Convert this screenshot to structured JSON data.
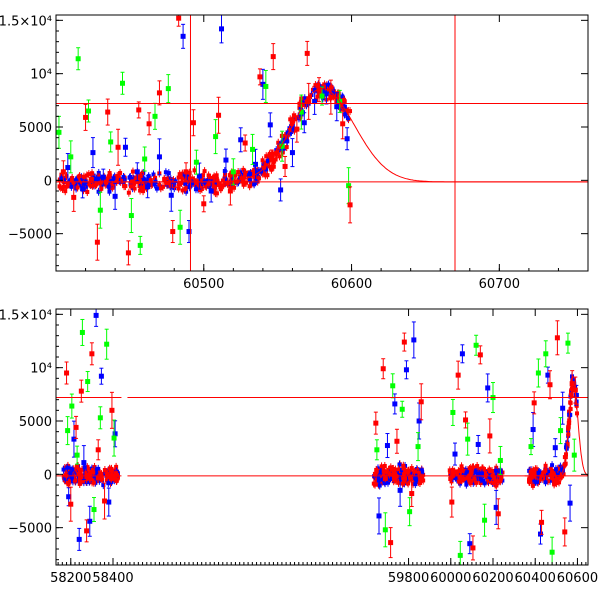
{
  "chart_data": [
    {
      "type": "scatter",
      "panel": "top",
      "title": "",
      "xlabel": "",
      "ylabel": "",
      "xlim": [
        60400,
        60760
      ],
      "ylim": [
        -8500,
        15500
      ],
      "xticks": [
        {
          "value": 60500,
          "label": "60500"
        },
        {
          "value": 60600,
          "label": "60600"
        },
        {
          "value": 60700,
          "label": "60700"
        }
      ],
      "yticks": [
        {
          "value": 15000,
          "label": "1.5×10⁴"
        },
        {
          "value": 10000,
          "label": "10⁴"
        },
        {
          "value": 5000,
          "label": "5000"
        },
        {
          "value": 0,
          "label": "0"
        },
        {
          "value": -5000,
          "label": "−5000"
        }
      ],
      "hlines": [
        7200,
        -150
      ],
      "vlines": [
        60491,
        60670
      ],
      "model_curve": {
        "peak_x": 60580,
        "peak_y": 8600,
        "rise_width": 20,
        "decay_width": 22,
        "baseline": -150,
        "x_range": [
          60400,
          60760
        ]
      },
      "series": [
        {
          "color": "#0000ff",
          "points": [
            [
              60408,
              1200
            ],
            [
              60418,
              -800
            ],
            [
              60425,
              2600
            ],
            [
              60432,
              300
            ],
            [
              60440,
              -1500
            ],
            [
              60447,
              3100
            ],
            [
              60455,
              800
            ],
            [
              60462,
              -600
            ],
            [
              60470,
              2200
            ],
            [
              60478,
              -1400
            ],
            [
              60486,
              13500
            ],
            [
              60490,
              -4800
            ],
            [
              60497,
              400
            ],
            [
              60505,
              -1000
            ],
            [
              60515,
              1900
            ],
            [
              60525,
              3800
            ],
            [
              60535,
              1500
            ],
            [
              60545,
              5200
            ],
            [
              60552,
              -900
            ],
            [
              60560,
              2600
            ],
            [
              60568,
              5400
            ],
            [
              60575,
              7400
            ],
            [
              60583,
              8100
            ],
            [
              60590,
              6900
            ],
            [
              60597,
              3900
            ],
            [
              60512,
              14200
            ],
            [
              60540,
              9000
            ]
          ]
        },
        {
          "color": "#00ff00",
          "points": [
            [
              60402,
              4500
            ],
            [
              60410,
              2200
            ],
            [
              60415,
              11400
            ],
            [
              60422,
              6500
            ],
            [
              60430,
              -2800
            ],
            [
              60437,
              3600
            ],
            [
              60445,
              9100
            ],
            [
              60451,
              -3300
            ],
            [
              60460,
              2000
            ],
            [
              60467,
              6000
            ],
            [
              60476,
              8600
            ],
            [
              60484,
              -4400
            ],
            [
              60495,
              1700
            ],
            [
              60508,
              4100
            ],
            [
              60520,
              800
            ],
            [
              60533,
              2900
            ],
            [
              60542,
              8800
            ],
            [
              60553,
              3200
            ],
            [
              60566,
              6400
            ],
            [
              60580,
              7900
            ],
            [
              60592,
              7400
            ],
            [
              60598,
              -500
            ],
            [
              60457,
              -6100
            ]
          ]
        },
        {
          "color": "#ff0000",
          "points": [
            [
              60405,
              800
            ],
            [
              60412,
              -1600
            ],
            [
              60420,
              5900
            ],
            [
              60428,
              -5800
            ],
            [
              60435,
              6400
            ],
            [
              60442,
              3100
            ],
            [
              60449,
              -6800
            ],
            [
              60456,
              6600
            ],
            [
              60463,
              5300
            ],
            [
              60470,
              8200
            ],
            [
              60479,
              -4800
            ],
            [
              60483,
              15200
            ],
            [
              60488,
              800
            ],
            [
              60493,
              5400
            ],
            [
              60500,
              -2200
            ],
            [
              60510,
              6100
            ],
            [
              60518,
              -1000
            ],
            [
              60528,
              3500
            ],
            [
              60538,
              9700
            ],
            [
              60546,
              2000
            ],
            [
              60555,
              1300
            ],
            [
              60563,
              4800
            ],
            [
              60571,
              7400
            ],
            [
              60578,
              8500
            ],
            [
              60586,
              7800
            ],
            [
              60594,
              5300
            ],
            [
              60599,
              -2300
            ],
            [
              60547,
              11600
            ],
            [
              60570,
              11900
            ]
          ]
        }
      ]
    },
    {
      "type": "scatter",
      "panel": "bottom",
      "title": "",
      "xlabel": "",
      "ylabel": "",
      "xlim": [
        58130,
        60650
      ],
      "ylim": [
        -8500,
        15500
      ],
      "xticks": [
        {
          "value": 58200,
          "label": "58200"
        },
        {
          "value": 58400,
          "label": "58400"
        },
        {
          "value": 59800,
          "label": "59800"
        },
        {
          "value": 60000,
          "label": "60000"
        },
        {
          "value": 60200,
          "label": "60200"
        },
        {
          "value": 60400,
          "label": "60400"
        },
        {
          "value": 60600,
          "label": "60600"
        }
      ],
      "yticks": [
        {
          "value": 15000,
          "label": "1.5×10⁴"
        },
        {
          "value": 10000,
          "label": "10⁴"
        },
        {
          "value": 5000,
          "label": "5000"
        },
        {
          "value": 0,
          "label": "0"
        },
        {
          "value": -5000,
          "label": "−5000"
        }
      ],
      "hlines": [
        7200,
        -150
      ],
      "model_curve": {
        "peak_x": 60580,
        "peak_y": 8600,
        "rise_width": 20,
        "decay_width": 22,
        "baseline": -150,
        "x_range": [
          60350,
          60650
        ]
      },
      "seasons": [
        [
          58165,
          58430
        ],
        [
          59635,
          59870
        ],
        [
          59995,
          60245
        ],
        [
          60370,
          60600
        ]
      ],
      "series": [
        {
          "color": "#0000ff",
          "points": [
            [
              58190,
              -2100
            ],
            [
              58215,
              3300
            ],
            [
              58240,
              -6100
            ],
            [
              58262,
              1100
            ],
            [
              58290,
              -4400
            ],
            [
              58320,
              14900
            ],
            [
              58345,
              9200
            ],
            [
              58380,
              -2600
            ],
            [
              58410,
              3800
            ],
            [
              59660,
              -3900
            ],
            [
              59700,
              2700
            ],
            [
              59735,
              6600
            ],
            [
              59760,
              -1500
            ],
            [
              59790,
              9800
            ],
            [
              59825,
              12600
            ],
            [
              59850,
              5000
            ],
            [
              60020,
              1900
            ],
            [
              60055,
              11300
            ],
            [
              60090,
              -6500
            ],
            [
              60130,
              2800
            ],
            [
              60175,
              8100
            ],
            [
              60215,
              -3100
            ],
            [
              60390,
              4200
            ],
            [
              60425,
              -5600
            ],
            [
              60460,
              9300
            ],
            [
              60495,
              2500
            ],
            [
              60530,
              6200
            ],
            [
              60565,
              -2700
            ],
            [
              60595,
              7400
            ]
          ]
        },
        {
          "color": "#00ff00",
          "points": [
            [
              58185,
              4100
            ],
            [
              58205,
              6400
            ],
            [
              58230,
              1800
            ],
            [
              58255,
              13300
            ],
            [
              58280,
              8700
            ],
            [
              58310,
              -3300
            ],
            [
              58340,
              5300
            ],
            [
              58370,
              12200
            ],
            [
              58405,
              3400
            ],
            [
              59650,
              2300
            ],
            [
              59690,
              -5200
            ],
            [
              59725,
              8300
            ],
            [
              59770,
              6100
            ],
            [
              59805,
              -3500
            ],
            [
              59845,
              2600
            ],
            [
              60010,
              5800
            ],
            [
              60045,
              -7600
            ],
            [
              60080,
              3300
            ],
            [
              60120,
              12100
            ],
            [
              60160,
              -4300
            ],
            [
              60200,
              7200
            ],
            [
              60235,
              1300
            ],
            [
              60380,
              2600
            ],
            [
              60415,
              9500
            ],
            [
              60450,
              11300
            ],
            [
              60480,
              -7300
            ],
            [
              60520,
              4100
            ],
            [
              60555,
              12300
            ],
            [
              60585,
              1800
            ]
          ]
        },
        {
          "color": "#ff0000",
          "points": [
            [
              58180,
              9500
            ],
            [
              58200,
              -2800
            ],
            [
              58225,
              4400
            ],
            [
              58250,
              7800
            ],
            [
              58275,
              -5300
            ],
            [
              58300,
              11300
            ],
            [
              58330,
              2300
            ],
            [
              58360,
              -2500
            ],
            [
              58395,
              6000
            ],
            [
              59645,
              4800
            ],
            [
              59680,
              9900
            ],
            [
              59715,
              -6400
            ],
            [
              59745,
              3100
            ],
            [
              59780,
              12400
            ],
            [
              59815,
              -1800
            ],
            [
              59860,
              6800
            ],
            [
              60005,
              -2600
            ],
            [
              60035,
              9300
            ],
            [
              60070,
              5100
            ],
            [
              60105,
              -6900
            ],
            [
              60140,
              11200
            ],
            [
              60185,
              3600
            ],
            [
              60225,
              -3700
            ],
            [
              60395,
              6700
            ],
            [
              60430,
              -4500
            ],
            [
              60470,
              8400
            ],
            [
              60505,
              12800
            ],
            [
              60540,
              -5400
            ],
            [
              60575,
              8500
            ],
            [
              60590,
              7900
            ]
          ]
        }
      ]
    }
  ]
}
